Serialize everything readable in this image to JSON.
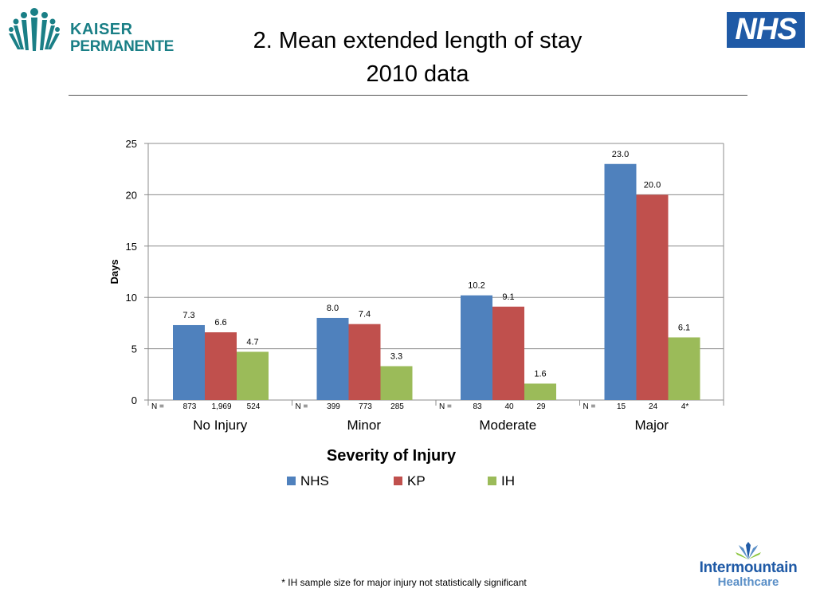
{
  "header": {
    "title_line1": "2. Mean extended length of stay",
    "title_line2": "2010 data",
    "left_logo_line1": "KAISER",
    "left_logo_line2": "PERMANENTE",
    "right_logo_text": "NHS"
  },
  "footer": {
    "footnote": "* IH sample size for major injury not statistically significant",
    "logo_line1": "Intermountain",
    "logo_line2": "Healthcare"
  },
  "colors": {
    "NHS": "#4f81bd",
    "KP": "#c0504d",
    "IH": "#9bbb59",
    "kp_brand": "#1a7f86",
    "nhs_brand": "#1f5aa6"
  },
  "chart_data": {
    "type": "bar",
    "title": "",
    "xlabel": "Severity of Injury",
    "ylabel": "Days",
    "ylim": [
      0,
      25
    ],
    "yticks": [
      0,
      5,
      10,
      15,
      20,
      25
    ],
    "grid": true,
    "legend_position": "bottom",
    "categories": [
      "No Injury",
      "Minor",
      "Moderate",
      "Major"
    ],
    "series": [
      {
        "name": "NHS",
        "values": [
          7.3,
          8.0,
          10.2,
          23.0
        ],
        "labels": [
          "7.3",
          "8.0",
          "10.2",
          "23.0"
        ]
      },
      {
        "name": "KP",
        "values": [
          6.6,
          7.4,
          9.1,
          20.0
        ],
        "labels": [
          "6.6",
          "7.4",
          "9.1",
          "20.0"
        ]
      },
      {
        "name": "IH",
        "values": [
          4.7,
          3.3,
          1.6,
          6.1
        ],
        "labels": [
          "4.7",
          "3.3",
          "1.6",
          "6.1"
        ]
      }
    ],
    "n_rows": [
      {
        "prefix": "N  =",
        "values": [
          "873",
          "1,969",
          "524"
        ]
      },
      {
        "prefix": "N =",
        "values": [
          "399",
          "773",
          "285"
        ]
      },
      {
        "prefix": "N =",
        "values": [
          "83",
          "40",
          "29"
        ]
      },
      {
        "prefix": "N =",
        "values": [
          "15",
          "24",
          "4*"
        ]
      }
    ]
  }
}
